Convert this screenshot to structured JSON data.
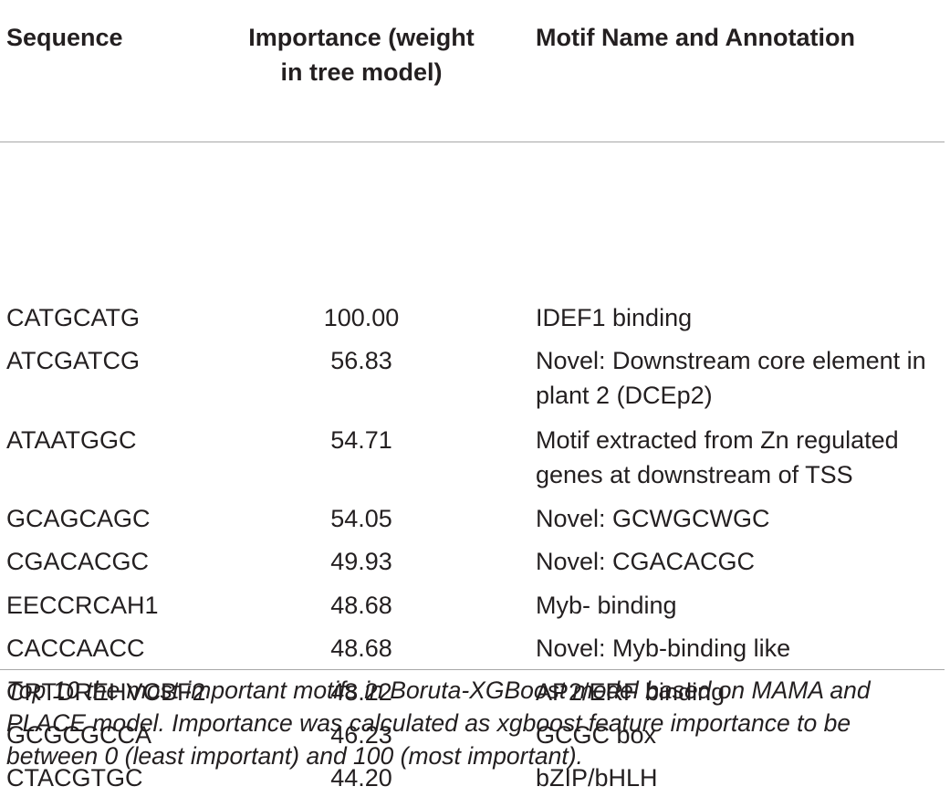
{
  "table": {
    "headers": {
      "sequence": "Sequence",
      "importance": "Importance (weight in tree model)",
      "motif": "Motif Name and Annotation"
    },
    "rows": [
      {
        "sequence": "CATGCATG",
        "importance": "100.00",
        "motif": "IDEF1 binding"
      },
      {
        "sequence": "ATCGATCG",
        "importance": "56.83",
        "motif": "Novel: Downstream core element in plant 2 (DCEp2)"
      },
      {
        "sequence": "ATAATGGC",
        "importance": "54.71",
        "motif": "Motif extracted from Zn regulated genes at downstream of TSS"
      },
      {
        "sequence": "GCAGCAGC",
        "importance": "54.05",
        "motif": "Novel: GCWGCWGC"
      },
      {
        "sequence": "CGACACGC",
        "importance": "49.93",
        "motif": "Novel: CGACACGC"
      },
      {
        "sequence": "EECCRCAH1",
        "importance": "48.68",
        "motif": "Myb- binding"
      },
      {
        "sequence": "CACCAACC",
        "importance": "48.68",
        "motif": "Novel: Myb-binding like"
      },
      {
        "sequence": "CRTDREHVCBF2",
        "importance": "48.22",
        "motif": "AP2/ERF binding"
      },
      {
        "sequence": "GCGCGCCA",
        "importance": "46.23",
        "motif": "GCGC box"
      },
      {
        "sequence": "CTACGTGC",
        "importance": "44.20",
        "motif": "bZIP/bHLH"
      }
    ]
  },
  "caption": "Top 10 the most important motifs in Boruta-XGBoost model based on MAMA and PLACE model. Importance was calculated as xgboost feature importance to be between 0 (least important) and 100 (most important)."
}
